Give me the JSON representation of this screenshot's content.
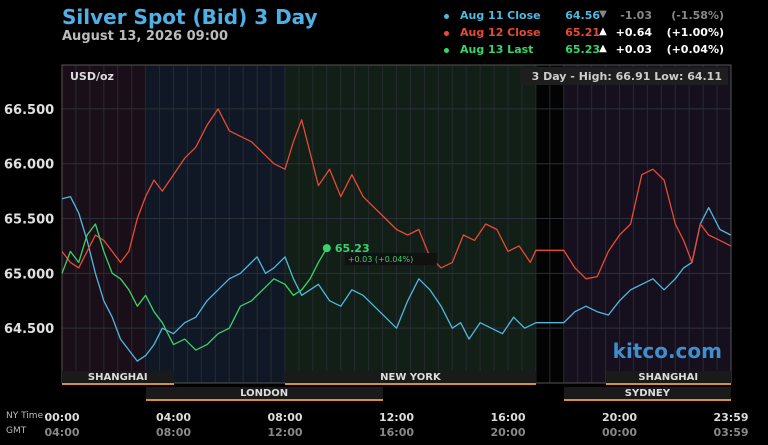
{
  "header": {
    "title": "Silver Spot (Bid) 3 Day",
    "subtitle": "August 13, 2026 09:00"
  },
  "legend": [
    {
      "name": "Aug 11 Close",
      "price": "64.56",
      "arrow": "▼",
      "change": "-1.03",
      "pct": "(-1.58%)",
      "color": "#4fb8e0",
      "change_color": "#888888"
    },
    {
      "name": "Aug 12 Close",
      "price": "65.21",
      "arrow": "▲",
      "change": "+0.64",
      "pct": "(+1.00%)",
      "color": "#e84a35",
      "change_color": "#ffffff"
    },
    {
      "name": "Aug 13 Last",
      "price": "65.23",
      "arrow": "▲",
      "change": "+0.03",
      "pct": "(+0.04%)",
      "color": "#36d46a",
      "change_color": "#ffffff"
    }
  ],
  "chart_info": {
    "unit": "USD/oz",
    "range_text": "3 Day - High: 66.91   Low: 64.11",
    "watermark": "kitco.com",
    "last_label": "65.23",
    "last_change": "+0.03 (+0.04%)"
  },
  "sessions": [
    {
      "name": "SHANGHAI",
      "start": 0,
      "end": 4,
      "row": 1
    },
    {
      "name": "NEW YORK",
      "start": 8,
      "end": 17,
      "row": 1
    },
    {
      "name": "SHANGHAI",
      "start": 19.5,
      "end": 24,
      "row": 1
    },
    {
      "name": "LONDON",
      "start": 3,
      "end": 11.5,
      "row": 2
    },
    {
      "name": "SYDNEY",
      "start": 18,
      "end": 24,
      "row": 2
    }
  ],
  "axis": {
    "ny_label": "NY Time",
    "gmt_label": "GMT",
    "ny_ticks": [
      "00:00",
      "04:00",
      "08:00",
      "12:00",
      "16:00",
      "20:00",
      "23:59"
    ],
    "gmt_ticks": [
      "04:00",
      "08:00",
      "12:00",
      "16:00",
      "20:00",
      "00:00",
      "03:59"
    ]
  },
  "chart_data": {
    "type": "line",
    "x_unit": "hours (NY time)",
    "xlim": [
      0,
      24
    ],
    "ylim": [
      64.0,
      66.9
    ],
    "yticks": [
      "64.500",
      "65.000",
      "65.500",
      "66.000",
      "66.500"
    ],
    "ytick_values": [
      64.5,
      65.0,
      65.5,
      66.0,
      66.5
    ],
    "series": [
      {
        "name": "Aug 11 Close",
        "color": "#4fb8e0",
        "x": [
          0,
          0.3,
          0.6,
          0.9,
          1.2,
          1.5,
          1.8,
          2.1,
          2.4,
          2.7,
          3.0,
          3.3,
          3.6,
          4.0,
          4.4,
          4.8,
          5.2,
          5.6,
          6.0,
          6.4,
          6.8,
          7.0,
          7.3,
          7.6,
          8.0,
          8.3,
          8.6,
          8.9,
          9.2,
          9.6,
          10.0,
          10.4,
          10.8,
          11.2,
          11.6,
          12.0,
          12.4,
          12.8,
          13.2,
          13.6,
          14.0,
          14.3,
          14.6,
          15.0,
          15.4,
          15.8,
          16.2,
          16.6,
          17.0,
          18.0,
          18.4,
          18.8,
          19.2,
          19.6,
          20.0,
          20.4,
          20.8,
          21.2,
          21.6,
          22.0,
          22.3,
          22.6,
          22.9,
          23.2,
          23.6,
          23.99
        ],
        "y": [
          65.68,
          65.7,
          65.55,
          65.3,
          65.0,
          64.75,
          64.6,
          64.4,
          64.3,
          64.2,
          64.25,
          64.35,
          64.5,
          64.45,
          64.55,
          64.6,
          64.75,
          64.85,
          64.95,
          65.0,
          65.1,
          65.15,
          65.0,
          65.05,
          65.15,
          64.95,
          64.8,
          64.85,
          64.9,
          64.75,
          64.7,
          64.85,
          64.8,
          64.7,
          64.6,
          64.5,
          64.75,
          64.95,
          64.85,
          64.7,
          64.5,
          64.55,
          64.4,
          64.55,
          64.5,
          64.45,
          64.6,
          64.5,
          64.55,
          64.55,
          64.65,
          64.7,
          64.65,
          64.62,
          64.75,
          64.85,
          64.9,
          64.95,
          64.85,
          64.95,
          65.05,
          65.1,
          65.45,
          65.6,
          65.4,
          65.35
        ]
      },
      {
        "name": "Aug 12 Close",
        "color": "#e84a35",
        "x": [
          0,
          0.3,
          0.6,
          0.9,
          1.2,
          1.5,
          1.8,
          2.1,
          2.4,
          2.7,
          3.0,
          3.3,
          3.6,
          4.0,
          4.4,
          4.8,
          5.2,
          5.6,
          6.0,
          6.4,
          6.8,
          7.2,
          7.6,
          8.0,
          8.3,
          8.6,
          8.9,
          9.2,
          9.6,
          10.0,
          10.4,
          10.8,
          11.2,
          11.6,
          12.0,
          12.4,
          12.8,
          13.2,
          13.6,
          14.0,
          14.4,
          14.8,
          15.2,
          15.6,
          16.0,
          16.4,
          16.8,
          17.0,
          18.0,
          18.4,
          18.8,
          19.2,
          19.6,
          20.0,
          20.4,
          20.8,
          21.2,
          21.6,
          22.0,
          22.3,
          22.6,
          22.9,
          23.2,
          23.6,
          23.99
        ],
        "y": [
          65.2,
          65.1,
          65.05,
          65.2,
          65.35,
          65.3,
          65.2,
          65.1,
          65.2,
          65.5,
          65.7,
          65.85,
          65.75,
          65.9,
          66.05,
          66.15,
          66.35,
          66.5,
          66.3,
          66.25,
          66.2,
          66.1,
          66.0,
          65.95,
          66.2,
          66.4,
          66.1,
          65.8,
          65.95,
          65.7,
          65.9,
          65.7,
          65.6,
          65.5,
          65.4,
          65.35,
          65.4,
          65.15,
          65.05,
          65.1,
          65.35,
          65.3,
          65.45,
          65.4,
          65.2,
          65.25,
          65.1,
          65.21,
          65.21,
          65.05,
          64.95,
          64.97,
          65.2,
          65.35,
          65.45,
          65.9,
          65.95,
          65.85,
          65.45,
          65.3,
          65.1,
          65.45,
          65.35,
          65.3,
          65.25
        ]
      },
      {
        "name": "Aug 13 Last",
        "color": "#36d46a",
        "x": [
          0,
          0.3,
          0.6,
          0.9,
          1.2,
          1.5,
          1.8,
          2.1,
          2.4,
          2.7,
          3.0,
          3.3,
          3.6,
          4.0,
          4.4,
          4.8,
          5.2,
          5.6,
          6.0,
          6.4,
          6.8,
          7.2,
          7.6,
          8.0,
          8.3,
          8.6,
          8.9,
          9.2,
          9.5
        ],
        "y": [
          65.0,
          65.2,
          65.1,
          65.35,
          65.45,
          65.2,
          65.0,
          64.95,
          64.85,
          64.7,
          64.8,
          64.65,
          64.55,
          64.35,
          64.4,
          64.3,
          64.35,
          64.45,
          64.5,
          64.7,
          64.75,
          64.85,
          64.95,
          64.9,
          64.8,
          64.85,
          64.95,
          65.1,
          65.23
        ]
      }
    ]
  }
}
